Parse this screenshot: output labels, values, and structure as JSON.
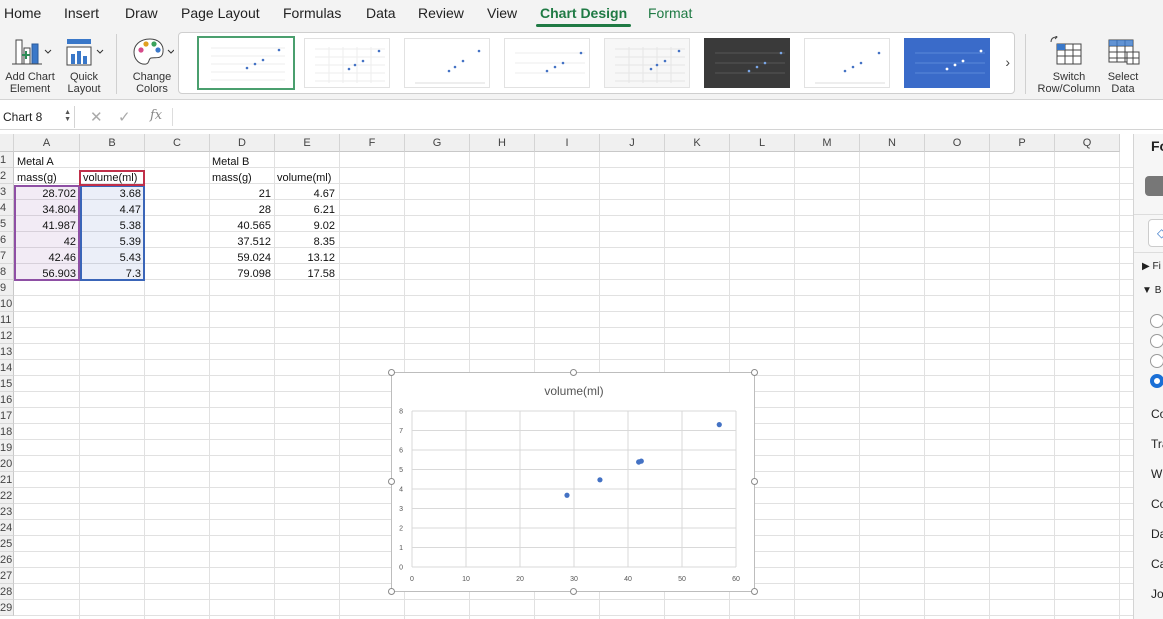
{
  "menu": {
    "tabs": [
      "Home",
      "Insert",
      "Draw",
      "Page Layout",
      "Formulas",
      "Data",
      "Review",
      "View",
      "Chart Design",
      "Format"
    ],
    "active_tab": "Chart Design"
  },
  "ribbon": {
    "add_chart_element": [
      "Add Chart",
      "Element"
    ],
    "quick_layout": [
      "Quick",
      "Layout"
    ],
    "change_colors": [
      "Change",
      "Colors"
    ],
    "switch_row_column": [
      "Switch",
      "Row/Column"
    ],
    "select_data": [
      "Select",
      "Data"
    ],
    "gallery_more_glyph": "›"
  },
  "formula_bar": {
    "name_box": "Chart 8",
    "cancel_glyph": "✕",
    "enter_glyph": "✓",
    "fx_label": "fx",
    "formula": ""
  },
  "columns": [
    "A",
    "B",
    "C",
    "D",
    "E",
    "F",
    "G",
    "H",
    "I",
    "J",
    "K",
    "L",
    "M",
    "N",
    "O",
    "P",
    "Q"
  ],
  "rows": [
    "1",
    "2",
    "3",
    "4",
    "5",
    "6",
    "7",
    "8",
    "9",
    "10",
    "11",
    "12",
    "13",
    "14",
    "15",
    "16",
    "17",
    "18",
    "19",
    "20",
    "21",
    "22",
    "23",
    "24",
    "25",
    "26",
    "27",
    "28",
    "29"
  ],
  "sheet": {
    "metal_a": {
      "title": "Metal A",
      "headers": [
        "mass(g)",
        "volume(ml)"
      ],
      "mass": [
        "28.702",
        "34.804",
        "41.987",
        "42",
        "42.46",
        "56.903"
      ],
      "volume": [
        "3.68",
        "4.47",
        "5.38",
        "5.39",
        "5.43",
        "7.3"
      ]
    },
    "metal_b": {
      "title": "Metal B",
      "headers": [
        "mass(g)",
        "volume(ml)"
      ],
      "mass": [
        "21",
        "28",
        "40.565",
        "37.512",
        "59.024",
        "79.098"
      ],
      "volume": [
        "4.67",
        "6.21",
        "9.02",
        "8.35",
        "13.12",
        "17.58"
      ]
    }
  },
  "chart_data": {
    "type": "scatter",
    "title": "volume(ml)",
    "x": [
      28.702,
      34.804,
      41.987,
      42,
      42.46,
      56.903
    ],
    "y": [
      3.68,
      4.47,
      5.38,
      5.39,
      5.43,
      7.3
    ],
    "xlim": [
      0,
      60
    ],
    "ylim": [
      0,
      8
    ],
    "xticks": [
      "0",
      "10",
      "20",
      "30",
      "40",
      "50",
      "60"
    ],
    "yticks": [
      "0",
      "1",
      "2",
      "3",
      "4",
      "5",
      "6",
      "7",
      "8"
    ],
    "grid": true,
    "color": "#4472c4"
  },
  "right_pane": {
    "title_fragment": "Fo",
    "sections": [
      "Fi",
      "B"
    ],
    "labels": [
      "Co",
      "Tra",
      "Wi",
      "Co",
      "Da",
      "Ca",
      "Jo"
    ]
  },
  "colors": {
    "accent": "#1f7a44",
    "series": "#4472c4"
  }
}
